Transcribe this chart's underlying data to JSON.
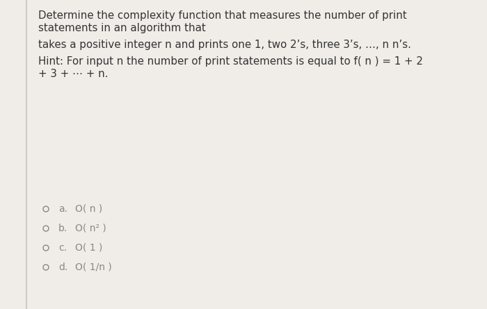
{
  "background_color": "#f0ede8",
  "left_border_color": "#c8c4be",
  "text_color": "#333333",
  "option_color": "#888888",
  "question_lines": [
    "Determine the complexity function that measures the number of print",
    "statements in an algorithm that"
  ],
  "line2": "takes a positive integer n and prints one 1, two 2’s, three 3’s, …, n n’s.",
  "hint_lines": [
    "Hint: For input n the number of print statements is equal to f( n ) = 1 + 2",
    "+ 3 + ⋯ + n."
  ],
  "options": [
    {
      "label": "a.",
      "text": "O( n )"
    },
    {
      "label": "b.",
      "text": "O( n² )"
    },
    {
      "label": "c.",
      "text": "O( 1 )"
    },
    {
      "label": "d.",
      "text": "O( 1/n )"
    }
  ],
  "font_size_question": 10.8,
  "font_size_options": 10.0
}
